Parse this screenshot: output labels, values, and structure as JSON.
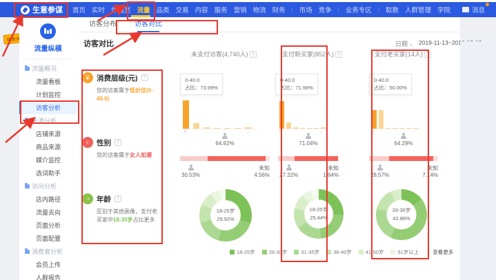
{
  "colors": {
    "nav_blue": "#2b59e0",
    "accent_blue": "#2a6ae9",
    "annotation_red": "#e8382e",
    "nav_active_yellow": "#f5c531",
    "orange": "#f9a32a",
    "orange_light": "#fbd596",
    "gender_female": "#f5625c",
    "gender_male": "#f8cbc9",
    "gender_unknown": "#fbe0df",
    "age_greens": [
      "#7dc258",
      "#95cd75",
      "#acd992",
      "#c4e4af",
      "#d9eec9",
      "#ebf6e0",
      "#f5fbf0"
    ]
  },
  "topnav": {
    "logo": "生意参谋",
    "items": [
      {
        "label": "首页"
      },
      {
        "label": "实时"
      },
      {
        "label": "作战室",
        "badge": true
      },
      {
        "label": "流量",
        "active": true
      },
      {
        "label": "品类"
      },
      {
        "label": "交易"
      },
      {
        "label": "内容"
      },
      {
        "label": "服务"
      },
      {
        "label": "营销"
      },
      {
        "label": "物流"
      },
      {
        "label": "财务"
      },
      {
        "label": "市场"
      },
      {
        "label": "竞争"
      },
      {
        "label": "业务专区"
      },
      {
        "label": "取数"
      },
      {
        "label": "人群管理",
        "badge": true
      },
      {
        "label": "学院"
      }
    ],
    "message_label": "消息"
  },
  "float_badge": {
    "label": "版本升级"
  },
  "sidebar": {
    "brand": "流量纵横",
    "items": [
      {
        "label": "流量概况",
        "type": "section"
      },
      {
        "label": "流量看板",
        "type": "item"
      },
      {
        "label": "计划监控",
        "type": "item"
      },
      {
        "label": "访客分析",
        "type": "item",
        "active": true
      },
      {
        "label": "来源分析",
        "type": "section"
      },
      {
        "label": "店铺来源",
        "type": "item"
      },
      {
        "label": "商品来源",
        "type": "item"
      },
      {
        "label": "媒介监控",
        "type": "item"
      },
      {
        "label": "选词助手",
        "type": "item"
      },
      {
        "label": "访问分析",
        "type": "section"
      },
      {
        "label": "店内路径",
        "type": "item"
      },
      {
        "label": "流量去向",
        "type": "item"
      },
      {
        "label": "页面分析",
        "type": "item"
      },
      {
        "label": "页面配置",
        "type": "item"
      },
      {
        "label": "消费者分析",
        "type": "section"
      },
      {
        "label": "会员上传",
        "type": "item"
      },
      {
        "label": "人群报告",
        "type": "item"
      }
    ]
  },
  "content": {
    "tabs": [
      {
        "label": "访客分布"
      },
      {
        "label": "访客对比",
        "active": true
      }
    ],
    "title": "访客对比",
    "date_label": "日期",
    "date_caret": "∨",
    "date_value": "2019-11-13~2019-12-12",
    "columns": [
      {
        "header": "未支付访客(4,740人)"
      },
      {
        "header": "支付新买家(852人)"
      },
      {
        "header": "支付老买家(14人)"
      }
    ],
    "rows": [
      {
        "title": "消费层级(元)",
        "icon": "yen-icon",
        "prefix": "您的访客属于",
        "highlight": "低价位(0-40.0)",
        "suffix": ""
      },
      {
        "title": "性别",
        "icon": "gender-icon",
        "prefix": "您的访客属于",
        "highlight": "女人如潮",
        "suffix": ""
      },
      {
        "title": "年龄",
        "icon": "age-icon",
        "prefix": "区别于其他画像，支付老买家中",
        "highlight": "18-30岁",
        "suffix": "占比更多"
      }
    ],
    "legend": {
      "items": [
        "18-25岁",
        "26-30岁",
        "31-35岁",
        "36-40岁",
        "41-50岁",
        "51岁以上"
      ],
      "more": "查看更多"
    }
  },
  "chart_data": [
    {
      "type": "bar",
      "name": "消费层级-未支付访客",
      "tooltip_range": "0-40.0",
      "tooltip_share": "占比：73.99%",
      "categories": [
        "0-40.0",
        "",
        "",
        "",
        "",
        "",
        ""
      ],
      "values": [
        73.99,
        14,
        4,
        2,
        2,
        1,
        3
      ],
      "first_tick": "0"
    },
    {
      "type": "bar",
      "name": "消费层级-支付新买家",
      "tooltip_range": "0-40.0",
      "tooltip_share": "占比：71.98%",
      "categories": [
        "0-40.0",
        "",
        "",
        "",
        "",
        "",
        ""
      ],
      "values": [
        71.98,
        16,
        3,
        2,
        2,
        1,
        3
      ],
      "first_tick": "0"
    },
    {
      "type": "bar",
      "name": "消费层级-支付老买家",
      "tooltip_range": "0-40.0",
      "tooltip_share": "占比：50.00%",
      "categories": [
        "0-40.0",
        "",
        "",
        "",
        "",
        "",
        ""
      ],
      "values": [
        50,
        50,
        1,
        1,
        1,
        1,
        1
      ],
      "first_tick": "0"
    },
    {
      "type": "stacked-bar",
      "name": "性别-未支付访客",
      "male": 30.53,
      "female": 64.92,
      "unknown": 4.56,
      "male_label": "30.53%",
      "female_label": "64.92%",
      "unknown_title": "未知",
      "unknown_label": "4.56%"
    },
    {
      "type": "stacked-bar",
      "name": "性别-支付新买家",
      "male": 27.32,
      "female": 71.04,
      "unknown": 1.64,
      "male_label": "27.32%",
      "female_label": "71.04%",
      "unknown_title": "未知",
      "unknown_label": "1.64%"
    },
    {
      "type": "stacked-bar",
      "name": "性别-支付老买家",
      "male": 28.57,
      "female": 64.29,
      "unknown": 7.14,
      "male_label": "28.57%",
      "female_label": "64.29%",
      "unknown_title": "未知",
      "unknown_label": "7.14%"
    },
    {
      "type": "pie",
      "name": "年龄-未支付访客",
      "categories": [
        "18-25岁",
        "26-30岁",
        "31-35岁",
        "36-40岁",
        "41-50岁",
        "51岁以上",
        "其他"
      ],
      "values": [
        29.92,
        24.5,
        16,
        11.5,
        8.5,
        5.5,
        4.08
      ],
      "center_top": "18-25岁",
      "center_bottom": "29.92%"
    },
    {
      "type": "pie",
      "name": "年龄-支付新买家",
      "categories": [
        "18-25岁",
        "26-30岁",
        "31-35岁",
        "36-40岁",
        "41-50岁",
        "51岁以上",
        "其他"
      ],
      "values": [
        25.44,
        23,
        17,
        13,
        10,
        6,
        5.56
      ],
      "center_top": "18-25岁",
      "center_bottom": "25.44%"
    },
    {
      "type": "pie",
      "name": "年龄-支付老买家",
      "categories": [
        "18-25岁",
        "26-30岁",
        "31-35岁",
        "36-40岁",
        "41-50岁",
        "51岁以上",
        "其他"
      ],
      "values": [
        14.29,
        42.86,
        21.43,
        14.28,
        7.14,
        0,
        0
      ],
      "center_top": "26-30岁",
      "center_bottom": "42.86%"
    }
  ]
}
